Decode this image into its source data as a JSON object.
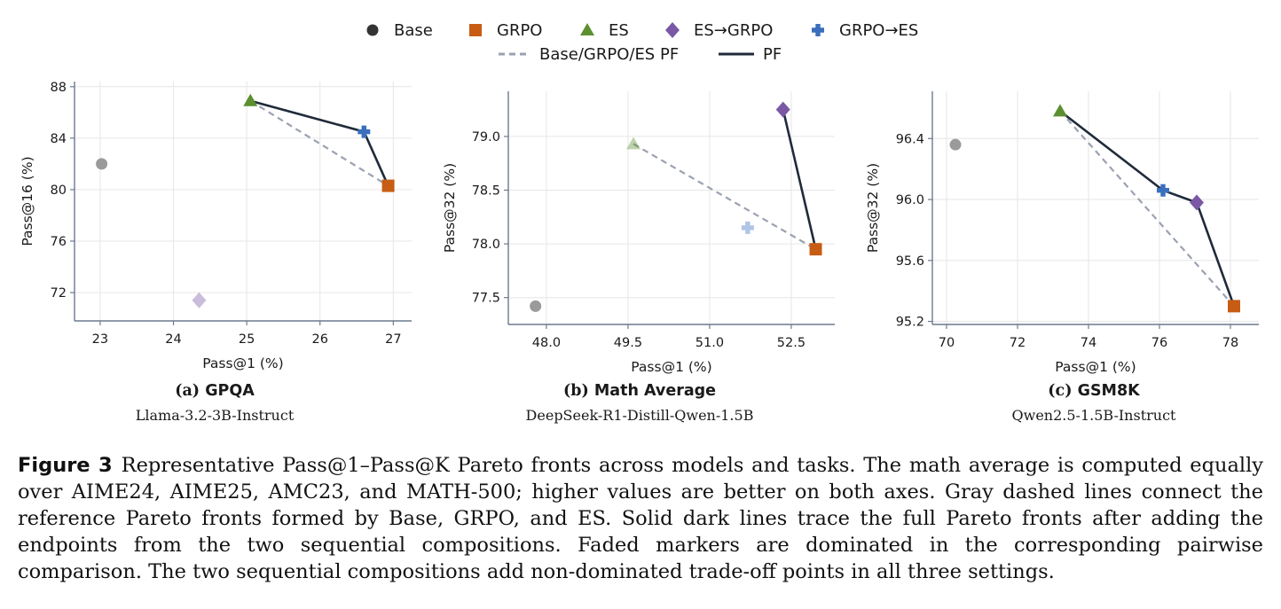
{
  "legend": {
    "markers": [
      {
        "name": "Base",
        "marker": "circle",
        "color": "#333333"
      },
      {
        "name": "GRPO",
        "marker": "square",
        "color": "#c75d14"
      },
      {
        "name": "ES",
        "marker": "triangle",
        "color": "#5b8f2f"
      },
      {
        "name": "ES→GRPO",
        "marker": "diamond",
        "color": "#7a58a6"
      },
      {
        "name": "GRPO→ES",
        "marker": "plus",
        "color": "#3a6fbd"
      }
    ],
    "lines": [
      {
        "name": "Base/GRPO/ES PF",
        "style": "dashed",
        "color": "#9aa1b0"
      },
      {
        "name": "PF",
        "style": "solid",
        "color": "#1f2a3a"
      }
    ]
  },
  "chart_data": [
    {
      "type": "scatter",
      "panel": "(a)",
      "title": "GPQA",
      "subtitle": "Llama-3.2-3B-Instruct",
      "xlabel": "Pass@1 (%)",
      "ylabel": "Pass@16 (%)",
      "xlim": [
        22.65,
        27.25
      ],
      "ylim": [
        69.8,
        88.4
      ],
      "xticks": [
        23,
        24,
        25,
        26,
        27
      ],
      "yticks": [
        72,
        76,
        80,
        84,
        88
      ],
      "xtick_labels": [
        "23",
        "24",
        "25",
        "26",
        "27"
      ],
      "ytick_labels": [
        "72",
        "76",
        "80",
        "84",
        "88"
      ],
      "grid": true,
      "points": [
        {
          "series": "Base",
          "x": 23.02,
          "y": 82.0,
          "faded": true
        },
        {
          "series": "GRPO",
          "x": 26.93,
          "y": 80.3,
          "faded": false
        },
        {
          "series": "ES",
          "x": 25.05,
          "y": 86.9,
          "faded": false
        },
        {
          "series": "ES→GRPO",
          "x": 24.35,
          "y": 71.4,
          "faded": true
        },
        {
          "series": "GRPO→ES",
          "x": 26.6,
          "y": 84.5,
          "faded": false
        }
      ],
      "ref_front": [
        "ES",
        "GRPO"
      ],
      "full_front": [
        "ES",
        "GRPO→ES",
        "GRPO"
      ]
    },
    {
      "type": "scatter",
      "panel": "(b)",
      "title": "Math Average",
      "subtitle": "DeepSeek-R1-Distill-Qwen-1.5B",
      "xlabel": "Pass@1 (%)",
      "ylabel": "Pass@32 (%)",
      "xlim": [
        47.3,
        53.3
      ],
      "ylim": [
        77.25,
        79.42
      ],
      "xticks": [
        48.0,
        49.5,
        51.0,
        52.5
      ],
      "yticks": [
        77.5,
        78.0,
        78.5,
        79.0
      ],
      "xtick_labels": [
        "48.0",
        "49.5",
        "51.0",
        "52.5"
      ],
      "ytick_labels": [
        "77.5",
        "78.0",
        "78.5",
        "79.0"
      ],
      "grid": true,
      "points": [
        {
          "series": "Base",
          "x": 47.8,
          "y": 77.42,
          "faded": true
        },
        {
          "series": "GRPO",
          "x": 52.95,
          "y": 77.95,
          "faded": false
        },
        {
          "series": "ES",
          "x": 49.6,
          "y": 78.93,
          "faded": true
        },
        {
          "series": "ES→GRPO",
          "x": 52.35,
          "y": 79.25,
          "faded": false
        },
        {
          "series": "GRPO→ES",
          "x": 51.7,
          "y": 78.15,
          "faded": true
        }
      ],
      "ref_front": [
        "ES",
        "GRPO"
      ],
      "full_front": [
        "ES→GRPO",
        "GRPO"
      ]
    },
    {
      "type": "scatter",
      "panel": "(c)",
      "title": "GSM8K",
      "subtitle": "Qwen2.5-1.5B-Instruct",
      "xlabel": "Pass@1 (%)",
      "ylabel": "Pass@32 (%)",
      "xlim": [
        69.6,
        78.8
      ],
      "ylim": [
        95.18,
        96.71
      ],
      "xticks": [
        70,
        72,
        74,
        76,
        78
      ],
      "yticks": [
        95.2,
        95.6,
        96.0,
        96.4
      ],
      "xtick_labels": [
        "70",
        "72",
        "74",
        "76",
        "78"
      ],
      "ytick_labels": [
        "95.2",
        "95.6",
        "96.0",
        "96.4"
      ],
      "grid": true,
      "points": [
        {
          "series": "Base",
          "x": 70.25,
          "y": 96.36,
          "faded": true
        },
        {
          "series": "GRPO",
          "x": 78.1,
          "y": 95.3,
          "faded": false
        },
        {
          "series": "ES",
          "x": 73.2,
          "y": 96.58,
          "faded": false
        },
        {
          "series": "ES→GRPO",
          "x": 77.05,
          "y": 95.98,
          "faded": false
        },
        {
          "series": "GRPO→ES",
          "x": 76.1,
          "y": 96.06,
          "faded": false
        }
      ],
      "ref_front": [
        "ES",
        "GRPO"
      ],
      "full_front": [
        "ES",
        "GRPO→ES",
        "ES→GRPO",
        "GRPO"
      ]
    }
  ],
  "caption": {
    "label": "Figure 3",
    "text": "Representative Pass@1–Pass@K Pareto fronts across models and tasks. The math average is computed equally over AIME24, AIME25, AMC23, and MATH-500; higher values are better on both axes. Gray dashed lines connect the reference Pareto fronts formed by Base, GRPO, and ES. Solid dark lines trace the full Pareto fronts after adding the endpoints from the two sequential compositions. Faded markers are dominated in the corresponding pairwise comparison. The two sequential compositions add non-dominated trade-off points in all three settings."
  }
}
